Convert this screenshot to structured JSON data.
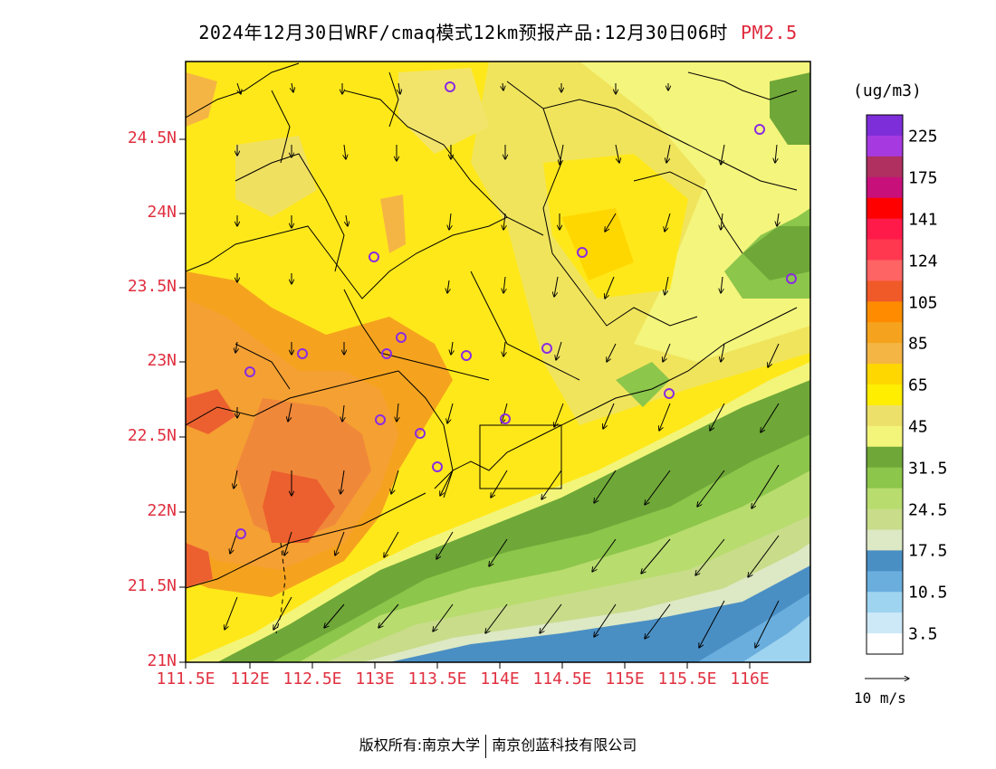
{
  "title": {
    "text": "2024年12月30日WRF/cmaq模式12km预报产品:12月30日06时",
    "pollutant": "PM2.5"
  },
  "y_axis_labels": [
    "24.5N",
    "24N",
    "23.5N",
    "23N",
    "22.5N",
    "22N",
    "21.5N",
    "21N"
  ],
  "x_axis_labels": [
    "111.5E",
    "112E",
    "112.5E",
    "113E",
    "113.5E",
    "114E",
    "114.5E",
    "115E",
    "115.5E",
    "116E"
  ],
  "colorbar": {
    "unit": "(ug/m3)",
    "labels": [
      "225",
      "175",
      "141",
      "124",
      "105",
      "85",
      "65",
      "45",
      "31.5",
      "24.5",
      "17.5",
      "10.5",
      "3.5"
    ],
    "colors": [
      "#7d2ed8",
      "#a63ae0",
      "#b03060",
      "#c8107a",
      "#ff0000",
      "#ff1a4a",
      "#ff3850",
      "#ff6464",
      "#f05a28",
      "#ff8c00",
      "#f5a31e",
      "#f5b544",
      "#ffd700",
      "#ffee00",
      "#ede06a",
      "#f2f57a",
      "#6fa838",
      "#8cc64a",
      "#b8dc6e",
      "#c8dc8a",
      "#dde8c4",
      "#4a8fc4",
      "#6aaede",
      "#9fd4f0",
      "#cde8f6",
      "#ffffff"
    ]
  },
  "vector_scale": "10 m/s",
  "footer": {
    "copyright": "版权所有:南京大学",
    "company": "南京创蓝科技有限公司"
  }
}
